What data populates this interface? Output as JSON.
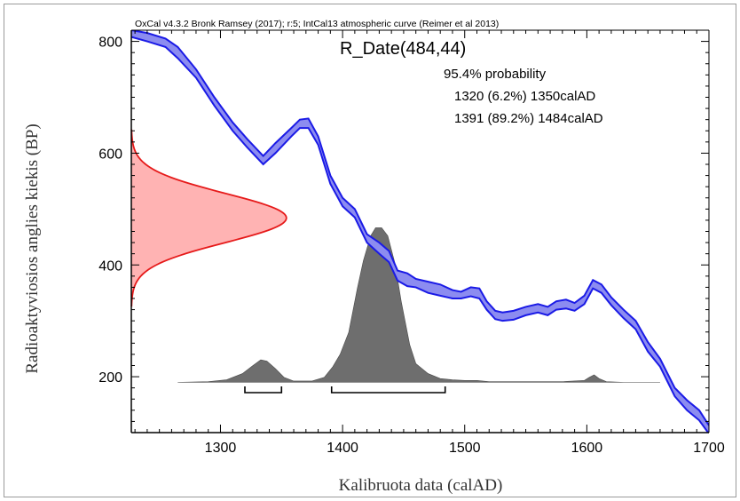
{
  "chart_data": {
    "type": "area",
    "header": "OxCal v4.3.2 Bronk Ramsey (2017); r:5; IntCal13 atmospheric curve (Reimer et al 2013)",
    "title": "R_Date(484,44)",
    "probability_label": "95.4% probability",
    "ranges_text": [
      "1320 (6.2%) 1350calAD",
      "1391 (89.2%) 1484calAD"
    ],
    "ranges": [
      [
        1320,
        1350
      ],
      [
        1391,
        1484
      ]
    ],
    "xlabel": "Kalibruota data (calAD)",
    "ylabel": "Radioaktyviosios anglies kiekis (BP)",
    "xlim": [
      1227,
      1700
    ],
    "ylim": [
      100,
      820
    ],
    "xticks": [
      1300,
      1400,
      1500,
      1600,
      1700
    ],
    "yticks": [
      200,
      400,
      600,
      800
    ],
    "colors": {
      "curve": "#1a1ae6",
      "curve_fill": "#8c8cf0",
      "radiocarbon": "#e61a1a",
      "radiocarbon_fill": "#ffb3b3",
      "posterior": "#6e6e6e"
    },
    "calibration_curve": {
      "name": "IntCal13",
      "x": [
        1227,
        1240,
        1255,
        1265,
        1280,
        1295,
        1310,
        1322,
        1335,
        1345,
        1358,
        1365,
        1372,
        1380,
        1390,
        1400,
        1410,
        1420,
        1430,
        1438,
        1445,
        1453,
        1460,
        1470,
        1480,
        1490,
        1497,
        1505,
        1512,
        1518,
        1525,
        1531,
        1540,
        1550,
        1560,
        1568,
        1575,
        1583,
        1590,
        1598,
        1605,
        1612,
        1620,
        1630,
        1640,
        1650,
        1660,
        1672,
        1682,
        1692,
        1700
      ],
      "upper": [
        820,
        815,
        805,
        790,
        750,
        700,
        655,
        625,
        595,
        618,
        645,
        660,
        662,
        630,
        560,
        520,
        500,
        455,
        440,
        425,
        390,
        385,
        375,
        370,
        365,
        355,
        352,
        360,
        358,
        335,
        318,
        315,
        318,
        325,
        330,
        325,
        335,
        338,
        332,
        345,
        373,
        365,
        342,
        320,
        300,
        262,
        232,
        180,
        158,
        140,
        113
      ],
      "lower": [
        808,
        800,
        790,
        770,
        735,
        685,
        640,
        610,
        580,
        600,
        630,
        645,
        645,
        615,
        545,
        505,
        485,
        440,
        420,
        405,
        372,
        362,
        360,
        350,
        345,
        340,
        340,
        344,
        340,
        320,
        303,
        300,
        302,
        310,
        315,
        310,
        320,
        322,
        318,
        330,
        358,
        350,
        328,
        305,
        285,
        245,
        218,
        165,
        140,
        122,
        98
      ]
    },
    "radiocarbon_date": {
      "mean": 484,
      "sd": 44,
      "axis_start_x": 1227,
      "peak_x": 1354
    },
    "posterior": {
      "baseline": 190,
      "x": [
        1265,
        1290,
        1305,
        1318,
        1326,
        1333,
        1338,
        1345,
        1352,
        1360,
        1375,
        1385,
        1392,
        1398,
        1405,
        1412,
        1417,
        1423,
        1427,
        1432,
        1437,
        1443,
        1448,
        1455,
        1460,
        1470,
        1480,
        1490,
        1500,
        1510,
        1520,
        1550,
        1580,
        1598,
        1602,
        1606,
        1610,
        1616,
        1630,
        1660
      ],
      "height": [
        0,
        1,
        4,
        14,
        26,
        36,
        34,
        22,
        8,
        2,
        2,
        8,
        25,
        45,
        80,
        150,
        195,
        235,
        248,
        248,
        235,
        190,
        130,
        60,
        30,
        14,
        6,
        4,
        3,
        3,
        1,
        1,
        1,
        3,
        8,
        12,
        6,
        1,
        0,
        0
      ]
    },
    "grid": false
  }
}
